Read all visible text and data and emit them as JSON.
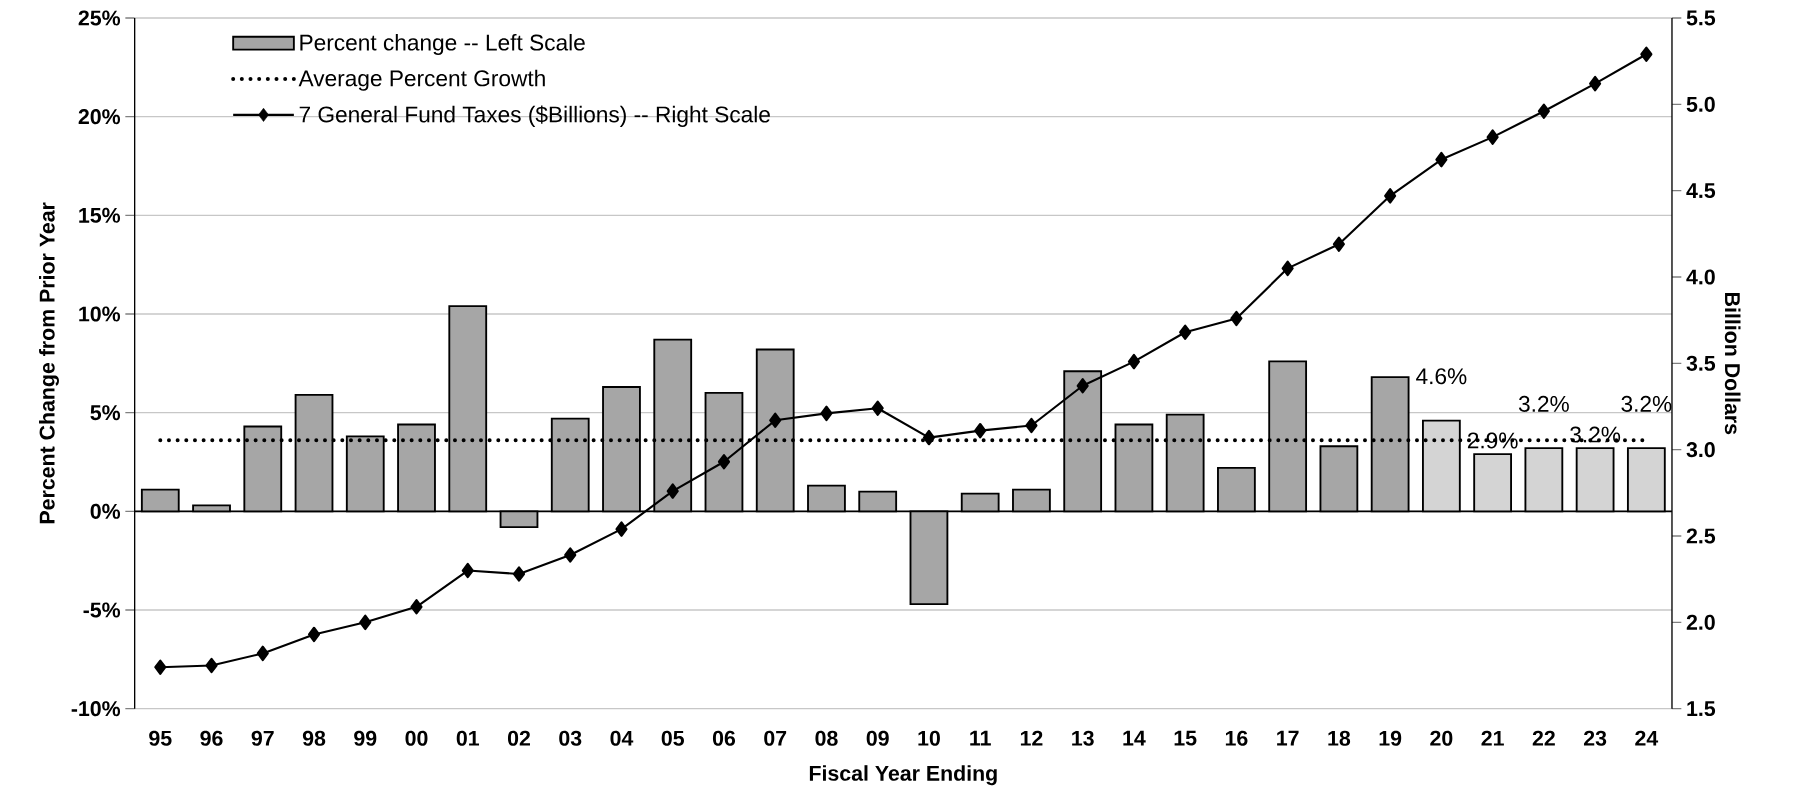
{
  "chart_data": {
    "type": "bar",
    "xlabel": "Fiscal Year Ending",
    "ylabel": "Percent Change from Prior Year",
    "y2label": "Billion Dollars",
    "categories": [
      "95",
      "96",
      "97",
      "98",
      "99",
      "00",
      "01",
      "02",
      "03",
      "04",
      "05",
      "06",
      "07",
      "08",
      "09",
      "10",
      "11",
      "12",
      "13",
      "14",
      "15",
      "16",
      "17",
      "18",
      "19",
      "20",
      "21",
      "22",
      "23",
      "24"
    ],
    "series": [
      {
        "name": "Percent change -- Left Scale",
        "color": "#a6a6a6",
        "colors": [
          "#a6a6a6",
          "#a6a6a6",
          "#a6a6a6",
          "#a6a6a6",
          "#a6a6a6",
          "#a6a6a6",
          "#a6a6a6",
          "#a6a6a6",
          "#a6a6a6",
          "#a6a6a6",
          "#a6a6a6",
          "#a6a6a6",
          "#a6a6a6",
          "#a6a6a6",
          "#a6a6a6",
          "#a6a6a6",
          "#a6a6a6",
          "#a6a6a6",
          "#a6a6a6",
          "#a6a6a6",
          "#a6a6a6",
          "#a6a6a6",
          "#a6a6a6",
          "#a6a6a6",
          "#a6a6a6",
          "#d4d4d4",
          "#d4d4d4",
          "#d4d4d4",
          "#d4d4d4",
          "#d4d4d4"
        ],
        "values": [
          1.1,
          0.3,
          4.3,
          5.9,
          3.8,
          4.4,
          10.4,
          -0.8,
          4.7,
          6.3,
          8.7,
          6.0,
          8.2,
          1.3,
          1.0,
          -4.7,
          0.9,
          1.1,
          7.1,
          4.4,
          4.9,
          2.2,
          7.6,
          3.3,
          6.8,
          4.6,
          2.9,
          3.2,
          3.2,
          3.2
        ],
        "value_labels": [
          null,
          null,
          null,
          null,
          null,
          null,
          null,
          null,
          null,
          null,
          null,
          null,
          null,
          null,
          null,
          null,
          null,
          null,
          null,
          null,
          null,
          null,
          null,
          null,
          null,
          "4.6%",
          "2.9%",
          "3.2%",
          "3.2%",
          "3.2%"
        ]
      },
      {
        "name": "Average Percent Growth",
        "type": "line",
        "color": "#000000",
        "line_style": "dotted",
        "marker": "none",
        "values": [
          3.6,
          3.6,
          3.6,
          3.6,
          3.6,
          3.6,
          3.6,
          3.6,
          3.6,
          3.6,
          3.6,
          3.6,
          3.6,
          3.6,
          3.6,
          3.6,
          3.6,
          3.6,
          3.6,
          3.6,
          3.6,
          3.6,
          3.6,
          3.6,
          3.6,
          3.6,
          3.6,
          3.6,
          3.6,
          3.6
        ]
      },
      {
        "name": "7 General Fund Taxes ($Billions) -- Right Scale",
        "type": "line",
        "axis": "y2",
        "color": "#000000",
        "line_style": "solid",
        "marker": "diamond",
        "values": [
          1.74,
          1.75,
          1.82,
          1.93,
          2.0,
          2.09,
          2.3,
          2.28,
          2.39,
          2.54,
          2.76,
          2.93,
          3.17,
          3.21,
          3.24,
          3.07,
          3.11,
          3.14,
          3.37,
          3.51,
          3.68,
          3.76,
          4.05,
          4.19,
          4.47,
          4.68,
          4.81,
          4.96,
          5.12,
          5.29
        ]
      }
    ],
    "ylim": [
      -10,
      25
    ],
    "yticks": [
      {
        "value": -10,
        "label": "-10%"
      },
      {
        "value": -5,
        "label": "-5%"
      },
      {
        "value": 0,
        "label": "0%"
      },
      {
        "value": 5,
        "label": "5%"
      },
      {
        "value": 10,
        "label": "10%"
      },
      {
        "value": 15,
        "label": "15%"
      },
      {
        "value": 20,
        "label": "20%"
      },
      {
        "value": 25,
        "label": "25%"
      }
    ],
    "y2lim": [
      1.5,
      5.5
    ],
    "y2ticks": [
      {
        "value": 1.5,
        "label": "1.5"
      },
      {
        "value": 2.0,
        "label": "2.0"
      },
      {
        "value": 2.5,
        "label": "2.5"
      },
      {
        "value": 3.0,
        "label": "3.0"
      },
      {
        "value": 3.5,
        "label": "3.5"
      },
      {
        "value": 4.0,
        "label": "4.0"
      },
      {
        "value": 4.5,
        "label": "4.5"
      },
      {
        "value": 5.0,
        "label": "5.0"
      },
      {
        "value": 5.5,
        "label": "5.5"
      }
    ],
    "grid": "y",
    "legend": "top left"
  }
}
